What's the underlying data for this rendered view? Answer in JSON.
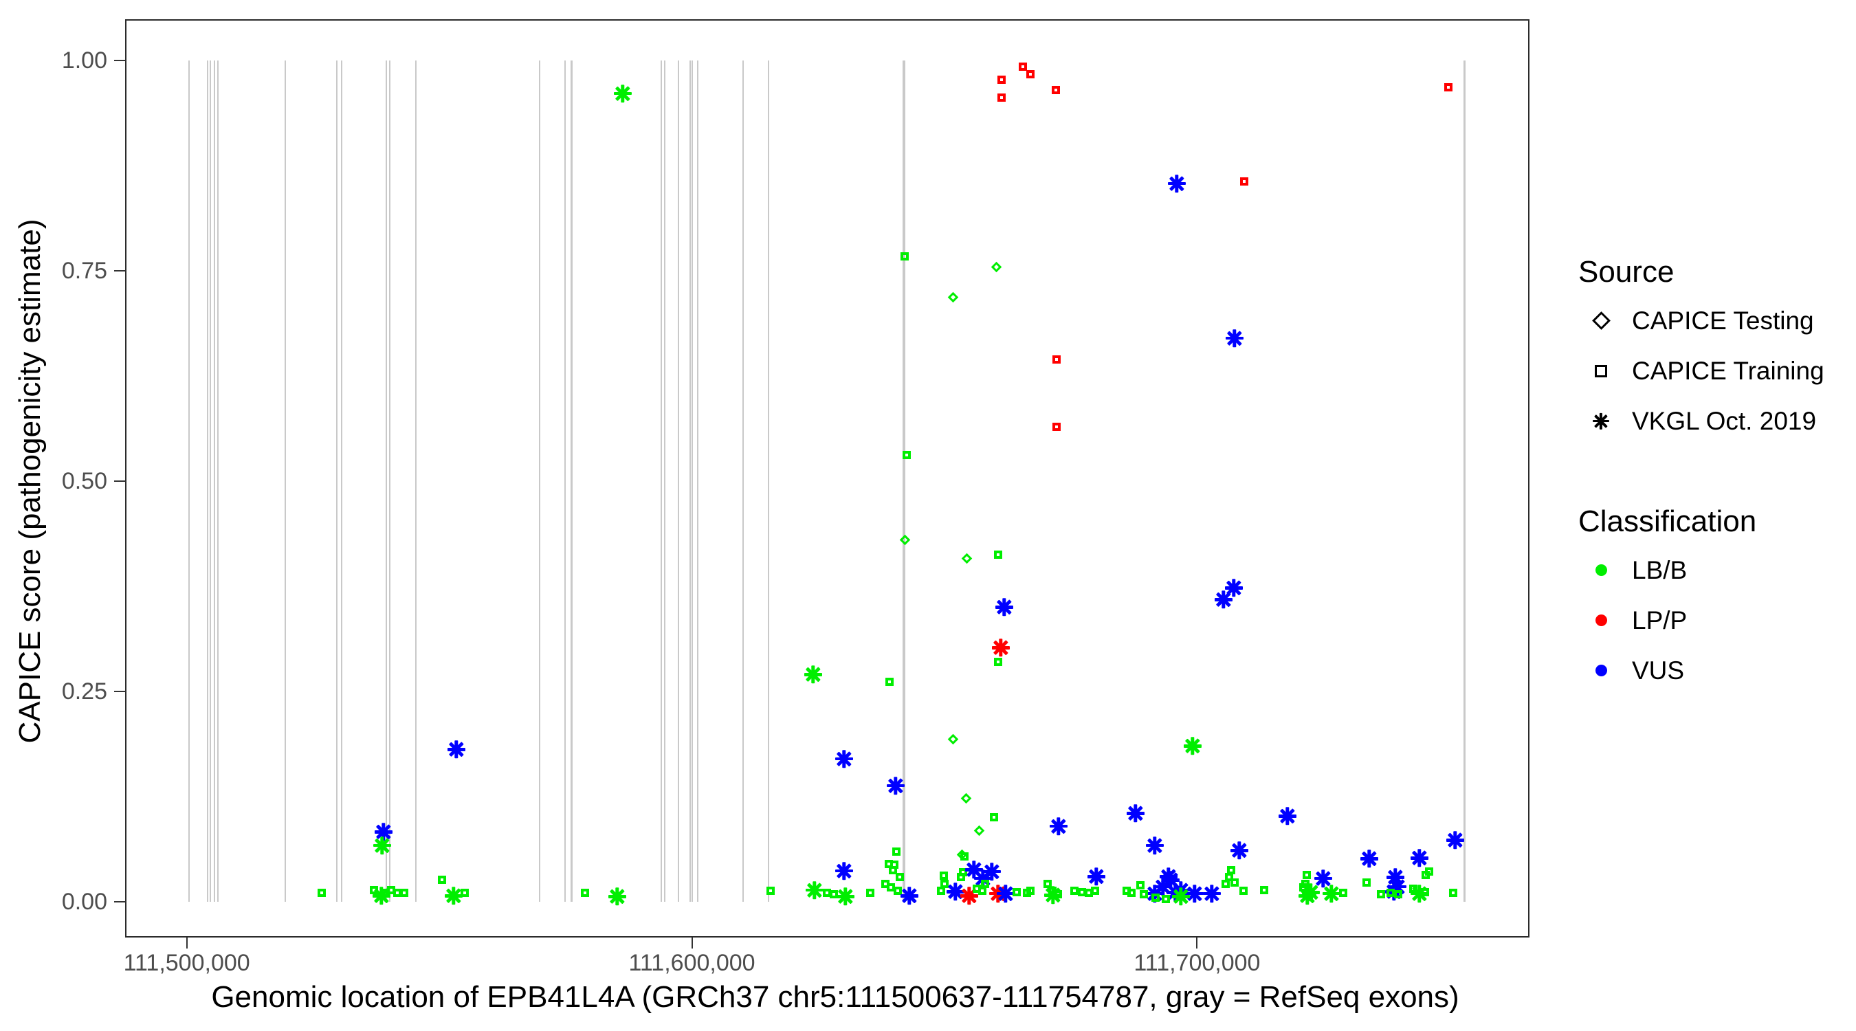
{
  "chart_data": {
    "type": "scatter",
    "title": "",
    "xlabel": "Genomic location of EPB41L4A (GRCh37 chr5:111500637-111754787, gray = RefSeq exons)",
    "ylabel": "CAPICE score (pathogenicity estimate)",
    "x_domain": [
      111487800,
      111765800
    ],
    "y_domain": [
      0,
      1
    ],
    "grid": false,
    "x_ticks": [
      {
        "value": 111500000,
        "label": "111,500,000"
      },
      {
        "value": 111600000,
        "label": "111,600,000"
      },
      {
        "value": 111700000,
        "label": "111,700,000"
      }
    ],
    "y_ticks": [
      {
        "value": 0.0,
        "label": "0.00"
      },
      {
        "value": 0.25,
        "label": "0.25"
      },
      {
        "value": 0.5,
        "label": "0.50"
      },
      {
        "value": 0.75,
        "label": "0.75"
      },
      {
        "value": 1.0,
        "label": "1.00"
      }
    ],
    "shape_legend": {
      "d": "CAPICE Testing",
      "s": "CAPICE Training",
      "a": "VKGL Oct. 2019"
    },
    "color_legend": {
      "g": "LB/B",
      "r": "LP/P",
      "b": "VUS"
    },
    "exon_note": "gray vertical segments = RefSeq exons, drawn from y=0 to y=1",
    "exons": [
      {
        "pos": 111500453,
        "w": 2
      },
      {
        "pos": 111504127,
        "w": 2
      },
      {
        "pos": 111504671,
        "w": 2
      },
      {
        "pos": 111505487,
        "w": 2
      },
      {
        "pos": 111506167,
        "w": 2
      },
      {
        "pos": 111519500,
        "w": 2
      },
      {
        "pos": 111529704,
        "w": 2
      },
      {
        "pos": 111530657,
        "w": 2
      },
      {
        "pos": 111539500,
        "w": 2
      },
      {
        "pos": 111540180,
        "w": 2
      },
      {
        "pos": 111545350,
        "w": 2
      },
      {
        "pos": 111569840,
        "w": 2
      },
      {
        "pos": 111574874,
        "w": 2
      },
      {
        "pos": 111576235,
        "w": 3
      },
      {
        "pos": 111593922,
        "w": 2
      },
      {
        "pos": 111594602,
        "w": 2
      },
      {
        "pos": 111597323,
        "w": 2
      },
      {
        "pos": 111599636,
        "w": 2
      },
      {
        "pos": 111600044,
        "w": 2
      },
      {
        "pos": 111601133,
        "w": 2
      },
      {
        "pos": 111610112,
        "w": 2
      },
      {
        "pos": 111615146,
        "w": 2
      },
      {
        "pos": 111641949,
        "w": 4
      },
      {
        "pos": 111752974,
        "w": 3
      }
    ],
    "points": [
      [
        111661814,
        0.974,
        "s",
        "r"
      ],
      [
        111661814,
        0.953,
        "s",
        "r"
      ],
      [
        111666032,
        0.989,
        "s",
        "r"
      ],
      [
        111667529,
        0.98,
        "s",
        "r"
      ],
      [
        111672563,
        0.962,
        "s",
        "r"
      ],
      [
        111750253,
        0.965,
        "s",
        "r"
      ],
      [
        111586303,
        0.961,
        "a",
        "g"
      ],
      [
        111695964,
        0.854,
        "a",
        "b"
      ],
      [
        111709842,
        0.853,
        "s",
        "r"
      ],
      [
        111707393,
        0.67,
        "a",
        "b"
      ],
      [
        111642629,
        0.764,
        "s",
        "g"
      ],
      [
        111660726,
        0.752,
        "d",
        "g"
      ],
      [
        111652153,
        0.716,
        "d",
        "g"
      ],
      [
        111672699,
        0.641,
        "s",
        "r"
      ],
      [
        111672699,
        0.561,
        "s",
        "r"
      ],
      [
        111643037,
        0.528,
        "s",
        "g"
      ],
      [
        111642629,
        0.427,
        "d",
        "g"
      ],
      [
        111654874,
        0.405,
        "d",
        "g"
      ],
      [
        111661134,
        0.409,
        "s",
        "g"
      ],
      [
        111661814,
        0.35,
        "a",
        "b"
      ],
      [
        111661134,
        0.302,
        "a",
        "r"
      ],
      [
        111661134,
        0.282,
        "s",
        "g"
      ],
      [
        111705216,
        0.359,
        "a",
        "b"
      ],
      [
        111707257,
        0.373,
        "a",
        "b"
      ],
      [
        111623986,
        0.27,
        "a",
        "g"
      ],
      [
        111639635,
        0.258,
        "s",
        "g"
      ],
      [
        111652153,
        0.19,
        "d",
        "g"
      ],
      [
        111630108,
        0.17,
        "a",
        "b"
      ],
      [
        111640315,
        0.138,
        "a",
        "b"
      ],
      [
        111654738,
        0.12,
        "d",
        "g"
      ],
      [
        111660318,
        0.097,
        "s",
        "g"
      ],
      [
        111657325,
        0.082,
        "d",
        "g"
      ],
      [
        111699093,
        0.185,
        "a",
        "g"
      ],
      [
        111553378,
        0.181,
        "a",
        "b"
      ],
      [
        111538956,
        0.083,
        "a",
        "b"
      ],
      [
        111538684,
        0.067,
        "a",
        "g"
      ],
      [
        111527255,
        0.007,
        "s",
        "g"
      ],
      [
        111537596,
        0.011,
        "s",
        "g"
      ],
      [
        111538548,
        0.007,
        "a",
        "g"
      ],
      [
        111539637,
        0.007,
        "s",
        "g"
      ],
      [
        111540997,
        0.011,
        "s",
        "g"
      ],
      [
        111542222,
        0.007,
        "s",
        "g"
      ],
      [
        111543582,
        0.007,
        "s",
        "g"
      ],
      [
        111551065,
        0.023,
        "s",
        "g"
      ],
      [
        111552834,
        0.007,
        "a",
        "g"
      ],
      [
        111555555,
        0.007,
        "s",
        "g"
      ],
      [
        111579364,
        0.007,
        "s",
        "g"
      ],
      [
        111585214,
        0.006,
        "a",
        "g"
      ],
      [
        111616095,
        0.01,
        "s",
        "g"
      ],
      [
        111624258,
        0.014,
        "a",
        "g"
      ],
      [
        111627251,
        0.007,
        "s",
        "g"
      ],
      [
        111628612,
        0.006,
        "s",
        "g"
      ],
      [
        111630380,
        0.006,
        "a",
        "g"
      ],
      [
        111630108,
        0.037,
        "a",
        "b"
      ],
      [
        111635823,
        0.007,
        "s",
        "g"
      ],
      [
        111640996,
        0.056,
        "s",
        "g"
      ],
      [
        111639499,
        0.042,
        "s",
        "g"
      ],
      [
        111640587,
        0.041,
        "s",
        "g"
      ],
      [
        111640315,
        0.034,
        "s",
        "g"
      ],
      [
        111641676,
        0.026,
        "s",
        "g"
      ],
      [
        111638818,
        0.018,
        "s",
        "g"
      ],
      [
        111639907,
        0.014,
        "s",
        "g"
      ],
      [
        111641267,
        0.01,
        "s",
        "g"
      ],
      [
        111643037,
        0.007,
        "a",
        "b"
      ],
      [
        111650384,
        0.028,
        "s",
        "g"
      ],
      [
        111650520,
        0.018,
        "s",
        "g"
      ],
      [
        111649840,
        0.01,
        "s",
        "g"
      ],
      [
        111653921,
        0.053,
        "d",
        "g"
      ],
      [
        111654466,
        0.051,
        "s",
        "g"
      ],
      [
        111654194,
        0.032,
        "s",
        "g"
      ],
      [
        111653785,
        0.026,
        "s",
        "g"
      ],
      [
        111655826,
        0.038,
        "a",
        "b"
      ],
      [
        111657594,
        0.028,
        "a",
        "b"
      ],
      [
        111659363,
        0.036,
        "a",
        "b"
      ],
      [
        111652153,
        0.012,
        "a",
        "b"
      ],
      [
        111654874,
        0.007,
        "a",
        "r"
      ],
      [
        111656914,
        0.012,
        "s",
        "g"
      ],
      [
        111658002,
        0.01,
        "s",
        "g"
      ],
      [
        111658546,
        0.018,
        "s",
        "g"
      ],
      [
        111660590,
        0.01,
        "a",
        "r"
      ],
      [
        111662086,
        0.01,
        "a",
        "b"
      ],
      [
        111664808,
        0.008,
        "s",
        "g"
      ],
      [
        111666848,
        0.007,
        "s",
        "g"
      ],
      [
        111672563,
        0.09,
        "a",
        "b"
      ],
      [
        111687801,
        0.105,
        "a",
        "b"
      ],
      [
        111691611,
        0.067,
        "a",
        "b"
      ],
      [
        111708346,
        0.061,
        "a",
        "b"
      ],
      [
        111717869,
        0.102,
        "a",
        "b"
      ],
      [
        111680046,
        0.03,
        "a",
        "b"
      ],
      [
        111694332,
        0.03,
        "a",
        "b"
      ],
      [
        111691611,
        0.01,
        "a",
        "b"
      ],
      [
        111693244,
        0.018,
        "a",
        "b"
      ],
      [
        111694740,
        0.026,
        "a",
        "b"
      ],
      [
        111695692,
        0.011,
        "a",
        "b"
      ],
      [
        111696781,
        0.014,
        "a",
        "b"
      ],
      [
        111699502,
        0.01,
        "a",
        "b"
      ],
      [
        111702903,
        0.01,
        "a",
        "b"
      ],
      [
        111667529,
        0.01,
        "s",
        "g"
      ],
      [
        111670930,
        0.018,
        "s",
        "g"
      ],
      [
        111671883,
        0.01,
        "s",
        "g"
      ],
      [
        111671475,
        0.008,
        "a",
        "g"
      ],
      [
        111672971,
        0.006,
        "s",
        "g"
      ],
      [
        111676237,
        0.01,
        "s",
        "g"
      ],
      [
        111677733,
        0.008,
        "s",
        "g"
      ],
      [
        111679094,
        0.007,
        "s",
        "g"
      ],
      [
        111680318,
        0.01,
        "s",
        "g"
      ],
      [
        111686577,
        0.01,
        "s",
        "g"
      ],
      [
        111687529,
        0.007,
        "s",
        "g"
      ],
      [
        111689298,
        0.016,
        "s",
        "g"
      ],
      [
        111689978,
        0.006,
        "s",
        "g"
      ],
      [
        111692291,
        0.002,
        "s",
        "g"
      ],
      [
        111694332,
        0.0,
        "s",
        "g"
      ],
      [
        111696781,
        0.006,
        "a",
        "g"
      ],
      [
        111706169,
        0.018,
        "s",
        "g"
      ],
      [
        111706849,
        0.026,
        "s",
        "g"
      ],
      [
        111707257,
        0.034,
        "s",
        "g"
      ],
      [
        111707937,
        0.02,
        "s",
        "g"
      ],
      [
        111709706,
        0.01,
        "s",
        "g"
      ],
      [
        111713788,
        0.011,
        "s",
        "g"
      ],
      [
        111751069,
        0.073,
        "a",
        "b"
      ],
      [
        111734062,
        0.051,
        "a",
        "b"
      ],
      [
        111743994,
        0.052,
        "a",
        "b"
      ],
      [
        111724946,
        0.028,
        "a",
        "b"
      ],
      [
        111739232,
        0.029,
        "a",
        "b"
      ],
      [
        111739641,
        0.018,
        "a",
        "b"
      ],
      [
        111738960,
        0.012,
        "a",
        "b"
      ],
      [
        111722225,
        0.029,
        "s",
        "g"
      ],
      [
        111721545,
        0.014,
        "s",
        "g"
      ],
      [
        111722497,
        0.011,
        "a",
        "g"
      ],
      [
        111722633,
        0.004,
        "s",
        "g"
      ],
      [
        111726579,
        0.01,
        "a",
        "g"
      ],
      [
        111729436,
        0.007,
        "s",
        "g"
      ],
      [
        111734062,
        0.02,
        "s",
        "g"
      ],
      [
        111736919,
        0.006,
        "s",
        "g"
      ],
      [
        111738824,
        0.007,
        "s",
        "g"
      ],
      [
        111740321,
        0.006,
        "s",
        "g"
      ],
      [
        111745763,
        0.029,
        "s",
        "g"
      ],
      [
        111746443,
        0.033,
        "s",
        "g"
      ],
      [
        111743994,
        0.01,
        "a",
        "g"
      ],
      [
        111745627,
        0.008,
        "s",
        "g"
      ],
      [
        111743314,
        0.012,
        "s",
        "g"
      ],
      [
        111751205,
        0.007,
        "s",
        "g"
      ],
      [
        111721953,
        0.018,
        "s",
        "g"
      ],
      [
        111721817,
        0.007,
        "a",
        "g"
      ]
    ]
  },
  "axes": {
    "x_title": "Genomic location of EPB41L4A (GRCh37 chr5:111500637-111754787, gray = RefSeq exons)",
    "y_title": "CAPICE score (pathogenicity estimate)"
  },
  "legend": {
    "source": {
      "title": "Source",
      "items": [
        {
          "shape": "diamond",
          "label": "CAPICE Testing"
        },
        {
          "shape": "square",
          "label": "CAPICE Training"
        },
        {
          "shape": "asterisk",
          "label": "VKGL Oct. 2019"
        }
      ]
    },
    "classification": {
      "title": "Classification",
      "items": [
        {
          "color": "#00EE00",
          "label": "LB/B"
        },
        {
          "color": "#FF0000",
          "label": "LP/P"
        },
        {
          "color": "#0000FF",
          "label": "VUS"
        }
      ]
    }
  },
  "colors": {
    "lbb_green": "#00EE00",
    "lpp_red": "#FF0000",
    "vus_blue": "#0000FF",
    "exon_gray": "#c9c9c9",
    "axis_text": "#4d4d4d",
    "panel_border": "#2b2b2b"
  }
}
